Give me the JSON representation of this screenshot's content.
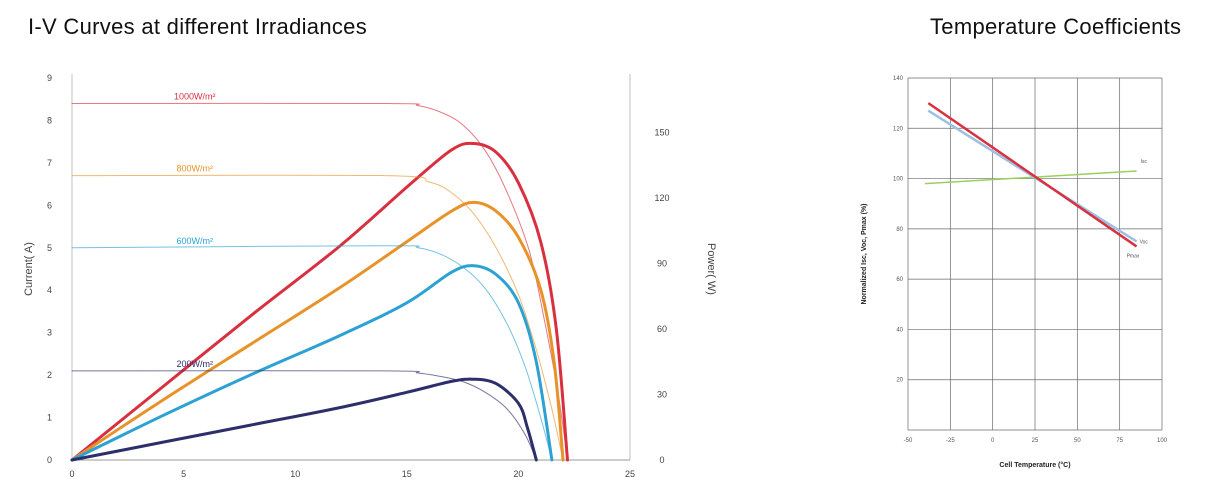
{
  "left_title": "I-V Curves at different Irradiances",
  "right_title": "Temperature Coefficients",
  "chart_data": [
    {
      "type": "line",
      "title": "I-V Curves at different Irradiances",
      "xlabel": "",
      "ylabel": "Current( A)",
      "y2label": "Power( W)",
      "xlim": [
        0,
        25
      ],
      "ylim": [
        0,
        9
      ],
      "y2lim": [
        0,
        175
      ],
      "xticks": [
        "0",
        "5",
        "10",
        "15",
        "20",
        "25"
      ],
      "yticks": [
        "0",
        "1",
        "2",
        "3",
        "4",
        "5",
        "6",
        "7",
        "8",
        "9"
      ],
      "y2ticks": [
        "0",
        "30",
        "60",
        "90",
        "120",
        "150"
      ],
      "grid": false,
      "series": [
        {
          "name": "1000W/m²",
          "kind": "current",
          "color": "#d93040",
          "x": [
            0,
            14,
            15.5,
            16.5,
            17.5,
            18.5,
            19.5,
            20.5,
            21.2,
            21.8,
            22.2
          ],
          "y": [
            8.4,
            8.4,
            8.35,
            8.2,
            7.9,
            7.3,
            6.3,
            4.9,
            3.2,
            1.5,
            0
          ]
        },
        {
          "name": "1000W/m² power",
          "kind": "power",
          "color": "#d93040",
          "x": [
            0,
            4,
            8,
            12,
            15,
            17,
            18,
            19,
            20,
            21,
            21.7,
            22.2
          ],
          "y": [
            0,
            33,
            66,
            98,
            125,
            142,
            145,
            141,
            127,
            100,
            60,
            0
          ]
        },
        {
          "name": "800W/m²",
          "kind": "current",
          "color": "#e7932a",
          "x": [
            0,
            14,
            16,
            17,
            18,
            19,
            20,
            20.8,
            21.5,
            22
          ],
          "y": [
            6.7,
            6.7,
            6.55,
            6.3,
            5.8,
            5.0,
            3.9,
            2.6,
            1.2,
            0
          ]
        },
        {
          "name": "800W/m² power",
          "kind": "power",
          "color": "#e7932a",
          "x": [
            0,
            4,
            8,
            12,
            15,
            17,
            18,
            19,
            20,
            21,
            21.6,
            22
          ],
          "y": [
            0,
            27,
            53,
            79,
            100,
            114,
            118,
            114,
            102,
            78,
            45,
            0
          ]
        },
        {
          "name": "600W/m²",
          "kind": "current",
          "color": "#2ba2d3",
          "x": [
            0,
            14,
            15.5,
            16.5,
            17.5,
            18.5,
            19.5,
            20.3,
            21,
            21.5
          ],
          "y": [
            5.0,
            5.05,
            5.0,
            4.85,
            4.55,
            4.05,
            3.2,
            2.2,
            1.0,
            0
          ]
        },
        {
          "name": "600W/m² power",
          "kind": "power",
          "color": "#2ba2d3",
          "x": [
            0,
            4,
            8,
            12,
            15,
            17,
            18,
            19,
            20,
            20.8,
            21.5
          ],
          "y": [
            0,
            20,
            39,
            57,
            72,
            86,
            89,
            85,
            72,
            45,
            0
          ]
        },
        {
          "name": "200W/m²",
          "kind": "current",
          "color": "#2c2f6a",
          "x": [
            0,
            14,
            15.5,
            16.5,
            17.5,
            18.5,
            19.5,
            20.3,
            20.8
          ],
          "y": [
            2.1,
            2.1,
            2.05,
            1.97,
            1.85,
            1.6,
            1.2,
            0.6,
            0
          ]
        },
        {
          "name": "200W/m² power",
          "kind": "power",
          "color": "#2c2f6a",
          "x": [
            0,
            4,
            8,
            12,
            15,
            17,
            18,
            19,
            20,
            20.4,
            20.8
          ],
          "y": [
            0,
            8,
            16,
            24,
            31,
            36,
            37,
            35,
            26,
            15,
            0
          ]
        }
      ]
    },
    {
      "type": "line",
      "title": "Temperature Coefficients",
      "xlabel": "Cell Temperature (°C)",
      "ylabel": "Normalized Isc, Voc, Pmax (%)",
      "xlim": [
        -50,
        100
      ],
      "ylim": [
        0,
        140
      ],
      "xticks": [
        "-50",
        "-25",
        "0",
        "25",
        "50",
        "75",
        "100"
      ],
      "yticks": [
        "20",
        "40",
        "60",
        "80",
        "100",
        "120",
        "140"
      ],
      "grid": true,
      "series": [
        {
          "name": "Isc",
          "color": "#9ccf5e",
          "x": [
            -40,
            85
          ],
          "y": [
            98,
            103
          ]
        },
        {
          "name": "Voc",
          "color": "#9dbfe0",
          "x": [
            -38,
            85
          ],
          "y": [
            127,
            75
          ]
        },
        {
          "name": "Pmax",
          "color": "#d93040",
          "x": [
            -38,
            85
          ],
          "y": [
            130,
            73
          ]
        }
      ]
    }
  ]
}
